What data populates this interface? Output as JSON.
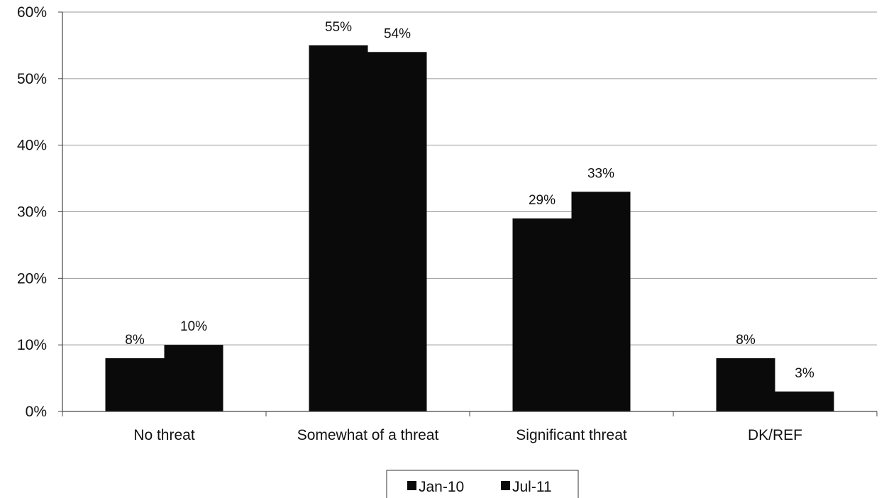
{
  "chart_data": {
    "type": "bar",
    "categories": [
      "No threat",
      "Somewhat of a threat",
      "Significant threat",
      "DK/REF"
    ],
    "series": [
      {
        "name": "Jan-10",
        "values": [
          8,
          55,
          29,
          8
        ],
        "labels": [
          "8%",
          "55%",
          "29%",
          "8%"
        ]
      },
      {
        "name": "Jul-11",
        "values": [
          10,
          54,
          33,
          3
        ],
        "labels": [
          "10%",
          "54%",
          "33%",
          "3%"
        ]
      }
    ],
    "ylim": [
      0,
      60
    ],
    "yticks": [
      0,
      10,
      20,
      30,
      40,
      50,
      60
    ],
    "ytick_labels": [
      "0%",
      "10%",
      "20%",
      "30%",
      "40%",
      "50%",
      "60%"
    ],
    "grid": true,
    "legend_position": "bottom-center",
    "colors": {
      "bar": "#0a0a0a",
      "grid": "#999999",
      "axis": "#444444",
      "background": "#ffffff"
    },
    "title": "",
    "xlabel": "",
    "ylabel": ""
  }
}
